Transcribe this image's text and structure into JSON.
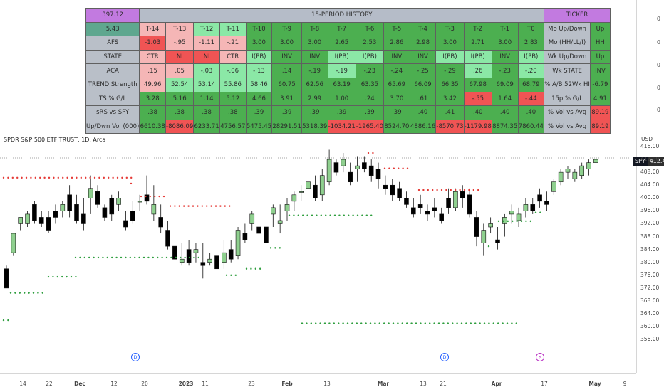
{
  "table": {
    "price": "397.12",
    "history_title": "15-PERIOD HISTORY",
    "ticker_header": "TICKER",
    "atr": "5.43",
    "period_labels": [
      "T-14",
      "T-13",
      "T-12",
      "T-11",
      "T-10",
      "T-9",
      "T-8",
      "T-7",
      "T-6",
      "T-5",
      "T-4",
      "T-3",
      "T-2",
      "T-1",
      "T0"
    ],
    "rows": [
      {
        "label": "AFS",
        "values": [
          "-1.03",
          "-.95",
          "-1.11",
          "-.21",
          "3.00",
          "3.00",
          "3.00",
          "2.65",
          "2.53",
          "2.86",
          "2.98",
          "3.00",
          "2.71",
          "3.00",
          "2.83"
        ],
        "colors": [
          "r",
          "lr",
          "lr",
          "lr",
          "g",
          "g",
          "g",
          "g",
          "g",
          "g",
          "g",
          "g",
          "g",
          "g",
          "g"
        ],
        "right_label": "Mo Up/Down",
        "right_value": "Up",
        "right_color": "g"
      },
      {
        "label": "STATE",
        "values": [
          "CTR",
          "NI",
          "NI",
          "CTR",
          "I(PB)",
          "INV",
          "INV",
          "I(PB)",
          "I(PB)",
          "INV",
          "INV",
          "I(PB)",
          "I(PB)",
          "INV",
          "I(PB)"
        ],
        "colors": [
          "lr",
          "r",
          "r",
          "lr",
          "lg",
          "g",
          "g",
          "lg",
          "lg",
          "g",
          "g",
          "lg",
          "lg",
          "g",
          "lg"
        ],
        "right_label": "Mo (HH/LL/I)",
        "right_value": "HH",
        "right_color": "g"
      },
      {
        "label": "ACA",
        "values": [
          ".15",
          ".05",
          "-.03",
          "-.06",
          "-.13",
          ".14",
          "-.19",
          "-.19",
          "-.23",
          "-.24",
          "-.25",
          "-.29",
          ".26",
          "-.23",
          "-.20"
        ],
        "colors": [
          "lr",
          "lr",
          "lg",
          "lg",
          "lg",
          "g",
          "g",
          "lg",
          "g",
          "g",
          "g",
          "g",
          "lg",
          "g",
          "lg"
        ],
        "right_label": "Wk Up/Down",
        "right_value": "Up",
        "right_color": "g"
      },
      {
        "label": "TREND Strength",
        "values": [
          "49.96",
          "52.54",
          "53.14",
          "55.86",
          "58.46",
          "60.75",
          "62.56",
          "63.19",
          "63.35",
          "65.69",
          "66.09",
          "66.35",
          "67.98",
          "69.09",
          "68.79"
        ],
        "colors": [
          "lr",
          "lg",
          "lg",
          "lg",
          "lg",
          "g",
          "g",
          "g",
          "g",
          "g",
          "g",
          "g",
          "g",
          "g",
          "g"
        ],
        "right_label": "Wk STATE",
        "right_value": "INV",
        "right_color": "g"
      },
      {
        "label": "TS % G/L",
        "values": [
          "3.28",
          "5.16",
          "1.14",
          "5.12",
          "4.66",
          "3.91",
          "2.99",
          "1.00",
          ".24",
          "3.70",
          ".61",
          "3.42",
          "-.55",
          "1.64",
          "-.44"
        ],
        "colors": [
          "g",
          "g",
          "g",
          "g",
          "g",
          "g",
          "g",
          "g",
          "g",
          "g",
          "g",
          "g",
          "r",
          "g",
          "r"
        ],
        "right_label": "% A/B 52Wk HI",
        "right_value": "-6.79",
        "right_color": "g"
      },
      {
        "label": "sRS vs SPY",
        "values": [
          ".38",
          ".38",
          ".38",
          ".38",
          ".39",
          ".39",
          ".39",
          ".39",
          ".39",
          ".39",
          ".40",
          ".41",
          ".40",
          ".40",
          ".40"
        ],
        "colors": [
          "g",
          "g",
          "g",
          "g",
          "g",
          "g",
          "g",
          "g",
          "g",
          "g",
          "g",
          "g",
          "g",
          "g",
          "g"
        ],
        "right_label": "15p % G/L",
        "right_value": "4.91",
        "right_color": "g"
      },
      {
        "label": "Up/Dwn Vol (000)",
        "values": [
          "6610.38",
          "-8086.09",
          "6233.71",
          "4756.57",
          "5475.45",
          "28291.51",
          "5318.39",
          "-1034.21",
          "-1965.40",
          "8524.70",
          "4886.16",
          "-8570.73",
          "-1179.98",
          "8874.35",
          "7860.44"
        ],
        "colors": [
          "g",
          "r",
          "g",
          "g",
          "g",
          "g",
          "g",
          "r",
          "r",
          "g",
          "g",
          "r",
          "r",
          "g",
          "g"
        ],
        "right_label": "% Vol vs Avg",
        "right_value": "89.19",
        "right_color": "r"
      }
    ],
    "palette": {
      "g": "#4caf50",
      "lg": "#8be8a6",
      "r": "#f05454",
      "lr": "#f5b6b6",
      "label": "#b9bfc8",
      "purple": "#c27ae0",
      "header_gray": "#b5bcc8",
      "atr_bg": "#5fa78f"
    }
  },
  "upper_axis": {
    "ticks": [
      "0",
      "0",
      "0",
      "−0",
      "−0"
    ]
  },
  "chart": {
    "symbol_line": "SPDR S&P 500 ETF TRUST, 1D, Arca",
    "currency": "USD",
    "symbol": "SPY",
    "last_price": "412.46",
    "y_ticks": [
      "416.00",
      "412.00",
      "408.00",
      "404.00",
      "400.00",
      "396.00",
      "392.00",
      "388.00",
      "384.00",
      "380.00",
      "376.00",
      "372.00",
      "368.00",
      "364.00",
      "360.00",
      "356.00"
    ],
    "x_ticks": [
      "14",
      "22",
      "Dec",
      "12",
      "20",
      "2023",
      "11",
      "23",
      "Feb",
      "13",
      "Mar",
      "13",
      "21",
      "Apr",
      "17",
      "May",
      "9"
    ],
    "events": [
      "D",
      "D",
      "⚡"
    ],
    "colors": {
      "up": "#8fd08f",
      "down": "#000000",
      "dot_green": "#2e9e3e",
      "dot_red": "#e53935"
    }
  }
}
